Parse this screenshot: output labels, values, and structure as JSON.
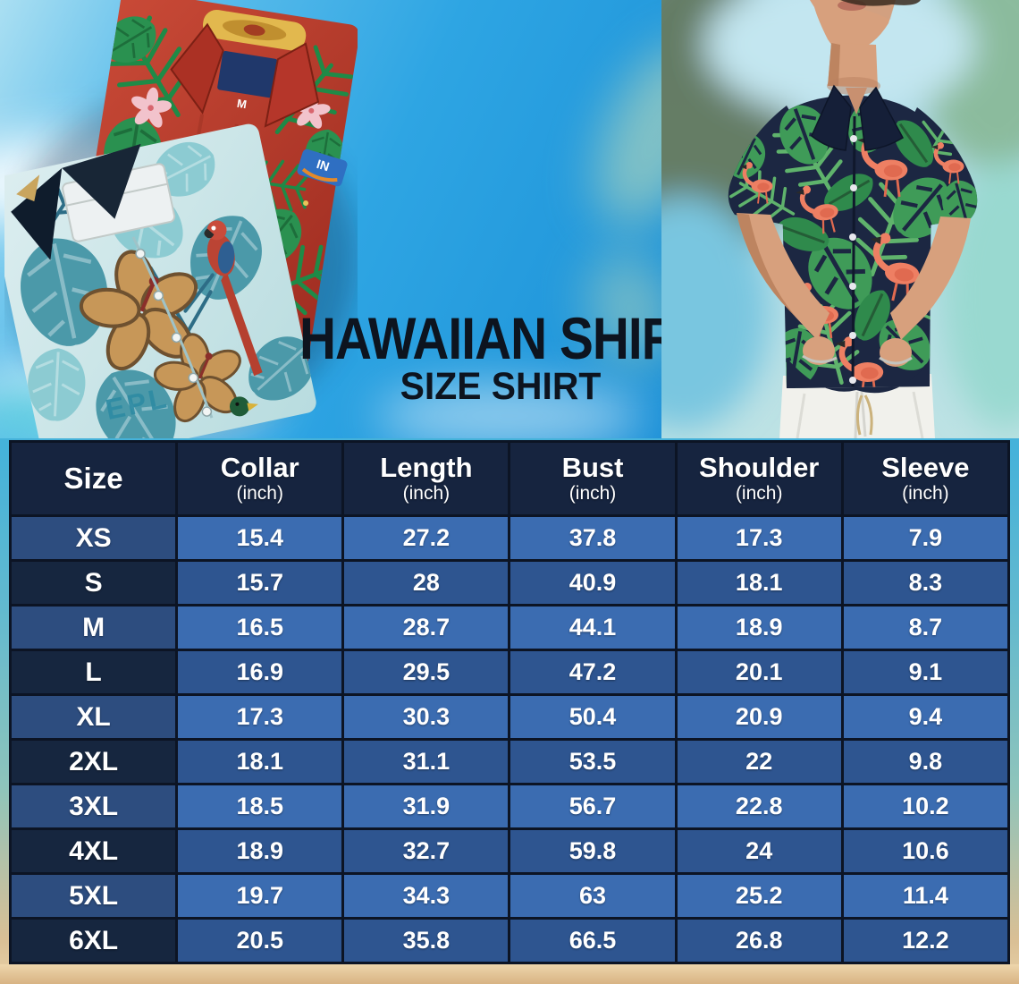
{
  "page": {
    "title": "HAWAIIAN SHIRT",
    "subtitle": "SIZE SHIRT"
  },
  "hero": {
    "left_photo_alt": "Two folded Hawaiian shirts: red tropical leaf print and light blue hibiscus print",
    "right_photo_alt": "Man wearing a navy flamingo and palm leaf Hawaiian shirt with white pants",
    "red_shirt_size_tag": "M",
    "red_shirt_logo_text": "IN",
    "front_shirt_print_text": "EPL"
  },
  "table": {
    "columns": [
      {
        "label": "Size",
        "unit": ""
      },
      {
        "label": "Collar",
        "unit": "(inch)"
      },
      {
        "label": "Length",
        "unit": "(inch)"
      },
      {
        "label": "Bust",
        "unit": "(inch)"
      },
      {
        "label": "Shoulder",
        "unit": "(inch)"
      },
      {
        "label": "Sleeve",
        "unit": "(inch)"
      }
    ],
    "rows": [
      {
        "size": "XS",
        "values": [
          "15.4",
          "27.2",
          "37.8",
          "17.3",
          "7.9"
        ]
      },
      {
        "size": "S",
        "values": [
          "15.7",
          "28",
          "40.9",
          "18.1",
          "8.3"
        ]
      },
      {
        "size": "M",
        "values": [
          "16.5",
          "28.7",
          "44.1",
          "18.9",
          "8.7"
        ]
      },
      {
        "size": "L",
        "values": [
          "16.9",
          "29.5",
          "47.2",
          "20.1",
          "9.1"
        ]
      },
      {
        "size": "XL",
        "values": [
          "17.3",
          "30.3",
          "50.4",
          "20.9",
          "9.4"
        ]
      },
      {
        "size": "2XL",
        "values": [
          "18.1",
          "31.1",
          "53.5",
          "22",
          "9.8"
        ]
      },
      {
        "size": "3XL",
        "values": [
          "18.5",
          "31.9",
          "56.7",
          "22.8",
          "10.2"
        ]
      },
      {
        "size": "4XL",
        "values": [
          "18.9",
          "32.7",
          "59.8",
          "24",
          "10.6"
        ]
      },
      {
        "size": "5XL",
        "values": [
          "19.7",
          "34.3",
          "63",
          "25.2",
          "11.4"
        ]
      },
      {
        "size": "6XL",
        "values": [
          "20.5",
          "35.8",
          "66.5",
          "26.8",
          "12.2"
        ]
      }
    ]
  },
  "chart_data": {
    "type": "table",
    "columns": [
      "Size",
      "Collar (inch)",
      "Length (inch)",
      "Bust (inch)",
      "Shoulder (inch)",
      "Sleeve (inch)"
    ],
    "rows": [
      [
        "XS",
        15.4,
        27.2,
        37.8,
        17.3,
        7.9
      ],
      [
        "S",
        15.7,
        28,
        40.9,
        18.1,
        8.3
      ],
      [
        "M",
        16.5,
        28.7,
        44.1,
        18.9,
        8.7
      ],
      [
        "L",
        16.9,
        29.5,
        47.2,
        20.1,
        9.1
      ],
      [
        "XL",
        17.3,
        30.3,
        50.4,
        20.9,
        9.4
      ],
      [
        "2XL",
        18.1,
        31.1,
        53.5,
        22,
        9.8
      ],
      [
        "3XL",
        18.5,
        31.9,
        56.7,
        22.8,
        10.2
      ],
      [
        "4XL",
        18.9,
        32.7,
        59.8,
        24,
        10.6
      ],
      [
        "5XL",
        19.7,
        34.3,
        63,
        25.2,
        11.4
      ],
      [
        "6XL",
        20.5,
        35.8,
        66.5,
        26.8,
        12.2
      ]
    ],
    "title": "Hawaiian Shirt Size Shirt"
  },
  "colors": {
    "header_bg": "#16243f",
    "row_light": "#3b6cb1",
    "row_dark": "#2e5590",
    "size_col_light": "#2d4d7f",
    "size_col_dark": "#16263f",
    "table_border": "#0c1424",
    "title_text": "#0d141f",
    "sky": "#2ea5e3",
    "sand": "#e3c298",
    "red_shirt": "#b5372a",
    "aqua_shirt": "#cfe7e9",
    "navy_shirt": "#1c2742",
    "flamingo": "#ee7f63",
    "leaf_green": "#3f9b58"
  }
}
